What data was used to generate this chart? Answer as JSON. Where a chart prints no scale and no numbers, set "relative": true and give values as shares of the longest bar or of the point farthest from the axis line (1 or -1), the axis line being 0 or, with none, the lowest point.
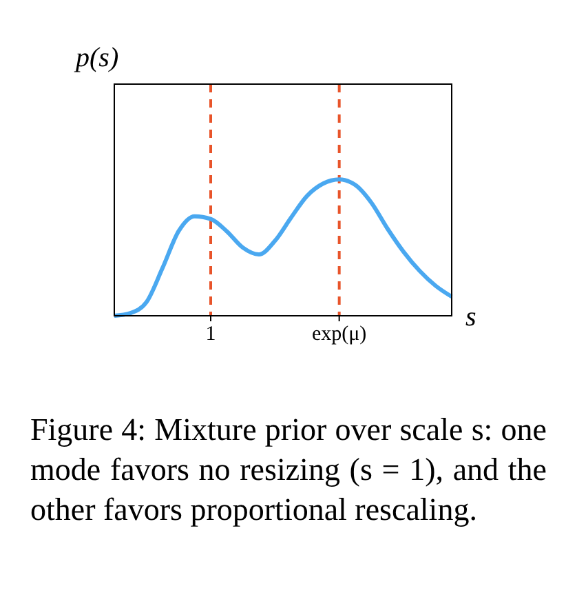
{
  "chart_data": {
    "type": "line",
    "relative": true,
    "ylabel": "p(s)",
    "xlabel": "s",
    "categories": [
      null,
      null,
      null,
      null,
      null,
      null,
      "1",
      null,
      null,
      null,
      null,
      null,
      null,
      null,
      "exp(μ)",
      null,
      null,
      null,
      null,
      null,
      null,
      null
    ],
    "series": [
      {
        "color": "#4aa8f0",
        "values": [
          0,
          0.02,
          0.1,
          0.35,
          0.62,
          0.73,
          0.71,
          0.62,
          0.5,
          0.45,
          0.55,
          0.72,
          0.88,
          0.97,
          1,
          0.96,
          0.83,
          0.64,
          0.47,
          0.33,
          0.22,
          0.14
        ]
      }
    ],
    "tick_labels": "x",
    "grid": false,
    "marker": "none",
    "line_style": "solid",
    "ref_lines": [
      {
        "axis": "x",
        "value": "1",
        "color": "#e8542a",
        "line_style": "dashed"
      },
      {
        "axis": "x",
        "value": "exp(μ)",
        "color": "#e8542a",
        "line_style": "dashed"
      }
    ],
    "annotations": [
      "Figure 4: Mixture prior over scale s: one mode favors no resizing (s = 1), and the other favors proportional rescaling."
    ]
  }
}
